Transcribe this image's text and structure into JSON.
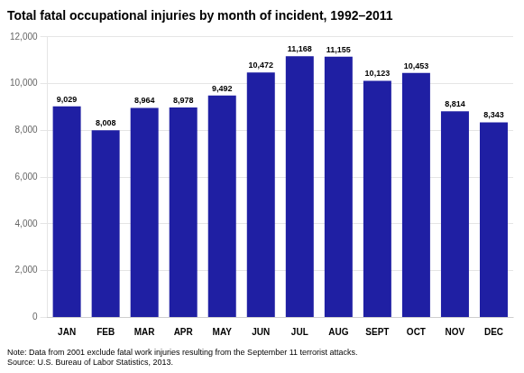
{
  "chart_data": {
    "type": "bar",
    "title": "Total fatal occupational injuries by month of incident, 1992–2011",
    "categories": [
      "JAN",
      "FEB",
      "MAR",
      "APR",
      "MAY",
      "JUN",
      "JUL",
      "AUG",
      "SEPT",
      "OCT",
      "NOV",
      "DEC"
    ],
    "values": [
      9029,
      8008,
      8964,
      8978,
      9492,
      10472,
      11168,
      11155,
      10123,
      10453,
      8814,
      8343
    ],
    "value_labels": [
      "9,029",
      "8,008",
      "8,964",
      "8,978",
      "9,492",
      "10,472",
      "11,168",
      "11,155",
      "10,123",
      "10,453",
      "8,814",
      "8,343"
    ],
    "data_labels": true,
    "color": "#1f1fa3",
    "ylim": [
      0,
      12000
    ],
    "yticks": [
      0,
      {
        "value": 2000,
        "label": "2,000"
      },
      {
        "value": 4000,
        "label": "4,000"
      },
      {
        "value": 6000,
        "label": "6,000"
      },
      {
        "value": 8000,
        "label": "8,000"
      },
      {
        "value": 10000,
        "label": "10,000"
      },
      {
        "value": 12000,
        "label": "12,000"
      }
    ],
    "grid": true,
    "annotations": [
      "Note: Data from 2001 exclude fatal work injuries resulting from the September 11 terrorist attacks.",
      "Source: U.S. Bureau of Labor Statistics, 2013."
    ]
  }
}
